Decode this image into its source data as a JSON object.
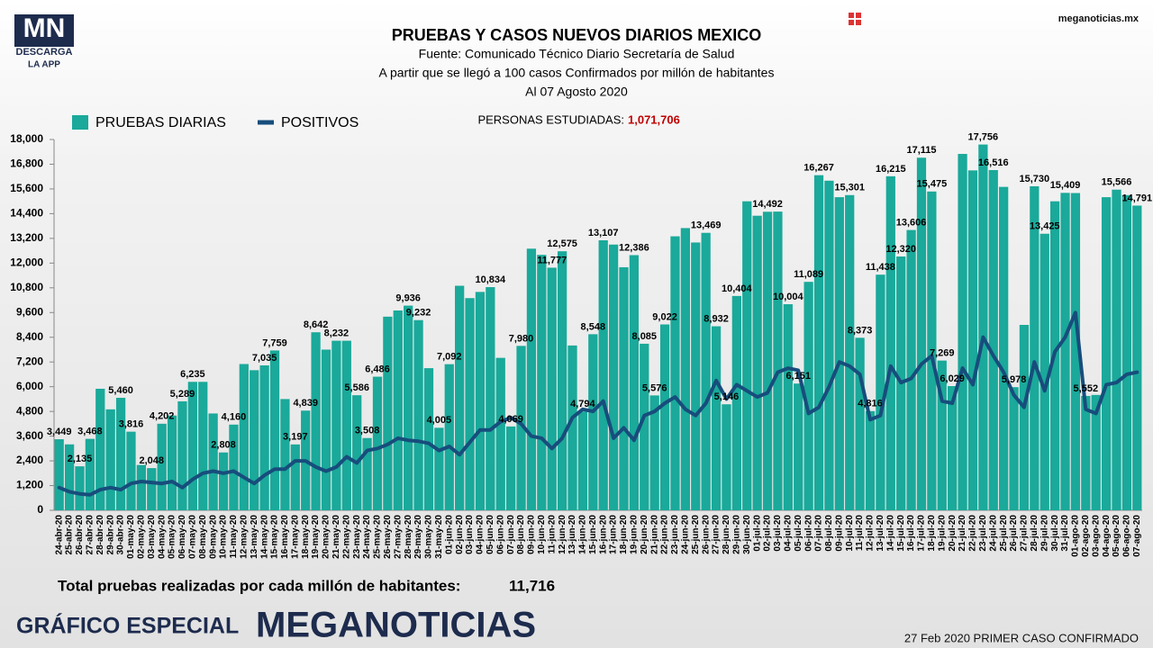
{
  "header": {
    "logo": "MN",
    "logo_line1": "DESCARGA",
    "logo_line2": "LA APP",
    "site": "meganoticias.mx"
  },
  "chart_data": {
    "type": "bar",
    "title": "PRUEBAS Y CASOS NUEVOS DIARIOS MEXICO",
    "source": "Fuente: Comunicado Técnico Diario Secretaría de Salud",
    "subtitle": "A partir que se llegó a 100 casos Confirmados por millón de habitantes",
    "date": "Al 07 Agosto 2020",
    "annotation_label": "PERSONAS ESTUDIADAS:",
    "annotation_value": "1,071,706",
    "categories": [
      "24-abr-20",
      "25-abr-20",
      "26-abr-20",
      "27-abr-20",
      "28-abr-20",
      "29-abr-20",
      "30-abr-20",
      "01-may-20",
      "02-may-20",
      "03-may-20",
      "04-may-20",
      "05-may-20",
      "06-may-20",
      "07-may-20",
      "08-may-20",
      "09-may-20",
      "10-may-20",
      "11-may-20",
      "12-may-20",
      "13-may-20",
      "14-may-20",
      "15-may-20",
      "16-may-20",
      "17-may-20",
      "18-may-20",
      "19-may-20",
      "20-may-20",
      "21-may-20",
      "22-may-20",
      "23-may-20",
      "24-may-20",
      "25-may-20",
      "26-may-20",
      "27-may-20",
      "28-may-20",
      "29-may-20",
      "30-may-20",
      "31-may-20",
      "01-jun-20",
      "02-jun-20",
      "03-jun-20",
      "04-jun-20",
      "05-jun-20",
      "06-jun-20",
      "07-jun-20",
      "08-jun-20",
      "09-jun-20",
      "10-jun-20",
      "11-jun-20",
      "12-jun-20",
      "13-jun-20",
      "14-jun-20",
      "15-jun-20",
      "16-jun-20",
      "17-jun-20",
      "18-jun-20",
      "19-jun-20",
      "20-jun-20",
      "21-jun-20",
      "22-jun-20",
      "23-jun-20",
      "24-jun-20",
      "25-jun-20",
      "26-jun-20",
      "27-jun-20",
      "28-jun-20",
      "29-jun-20",
      "30-jun-20",
      "01-jul-20",
      "02-jul-20",
      "03-jul-20",
      "04-jul-20",
      "05-jul-20",
      "06-jul-20",
      "07-jul-20",
      "08-jul-20",
      "09-jul-20",
      "10-jul-20",
      "11-jul-20",
      "12-jul-20",
      "13-jul-20",
      "14-jul-20",
      "15-jul-20",
      "16-jul-20",
      "17-jul-20",
      "18-jul-20",
      "19-jul-20",
      "20-jul-20",
      "21-jul-20",
      "22-jul-20",
      "23-jul-20",
      "24-jul-20",
      "25-jul-20",
      "26-jul-20",
      "27-jul-20",
      "28-jul-20",
      "29-jul-20",
      "30-jul-20",
      "31-jul-20",
      "01-ago-20",
      "02-ago-20",
      "03-ago-20",
      "04-ago-20",
      "05-ago-20",
      "06-ago-20",
      "07-ago-20"
    ],
    "series": [
      {
        "name": "PRUEBAS DIARIAS",
        "type": "bar",
        "color": "#1aa99a",
        "values": [
          3449,
          3200,
          2135,
          3468,
          5900,
          4900,
          5460,
          3816,
          2200,
          2048,
          4202,
          4600,
          5289,
          6235,
          6235,
          4700,
          2808,
          4160,
          7100,
          6800,
          7035,
          7759,
          5400,
          3197,
          4839,
          8642,
          7800,
          8232,
          8232,
          5586,
          3508,
          6486,
          9400,
          9700,
          9936,
          9232,
          6900,
          4005,
          7092,
          10900,
          10300,
          10600,
          10834,
          7400,
          4069,
          7980,
          12700,
          12400,
          11777,
          12575,
          8000,
          4794,
          8548,
          13107,
          12900,
          11800,
          12386,
          8085,
          5576,
          9022,
          13300,
          13700,
          13000,
          13469,
          8932,
          5146,
          10404,
          15000,
          14300,
          14492,
          14500,
          10004,
          6151,
          11089,
          16267,
          16000,
          15200,
          15301,
          8373,
          4816,
          11438,
          16215,
          12320,
          13606,
          17115,
          15475,
          7269,
          6029,
          17300,
          16500,
          17756,
          16516,
          15700,
          5978,
          9000,
          15730,
          13425,
          15000,
          15409,
          15400,
          5552,
          5600,
          15200,
          15566,
          15300,
          14791
        ],
        "value_labels": [
          "3,449",
          null,
          "2,135",
          "3,468",
          null,
          null,
          "5,460",
          "3,816",
          null,
          "2,048",
          "4,202",
          null,
          "5,289",
          "6,235",
          null,
          null,
          "2,808",
          "4,160",
          null,
          null,
          "7,035",
          "7,759",
          null,
          "3,197",
          "4,839",
          "8,642",
          null,
          "8,232",
          null,
          "5,586",
          "3,508",
          "6,486",
          null,
          null,
          "9,936",
          "9,232",
          null,
          "4,005",
          "7,092",
          null,
          null,
          null,
          "10,834",
          null,
          "4,069",
          "7,980",
          null,
          null,
          "11,777",
          "12,575",
          null,
          "4,794",
          "8,548",
          "13,107",
          null,
          null,
          "12,386",
          "8,085",
          "5,576",
          "9,022",
          null,
          null,
          null,
          "13,469",
          "8,932",
          "5,146",
          "10,404",
          null,
          null,
          "14,492",
          null,
          "10,004",
          "6,151",
          "11,089",
          "16,267",
          null,
          null,
          "15,301",
          "8,373",
          "4,816",
          "11,438",
          "16,215",
          "12,320",
          "13,606",
          "17,115",
          "15,475",
          "7,269",
          "6,029",
          null,
          null,
          "17,756",
          "16,516",
          null,
          "5,978",
          null,
          "15,730",
          "13,425",
          null,
          "15,409",
          null,
          "5,552",
          null,
          null,
          "15,566",
          null,
          "14,791"
        ]
      },
      {
        "name": "POSITIVOS",
        "type": "line",
        "color": "#174d7c",
        "values": [
          1100,
          900,
          800,
          750,
          1000,
          1100,
          1000,
          1300,
          1400,
          1350,
          1300,
          1400,
          1100,
          1500,
          1800,
          1900,
          1800,
          1900,
          1600,
          1300,
          1700,
          2000,
          2000,
          2400,
          2400,
          2100,
          1900,
          2100,
          2600,
          2300,
          2900,
          3000,
          3200,
          3500,
          3400,
          3350,
          3250,
          2900,
          3100,
          2700,
          3300,
          3900,
          3900,
          4300,
          4500,
          4200,
          3600,
          3500,
          3000,
          3500,
          4500,
          4900,
          4800,
          5300,
          3500,
          4000,
          3400,
          4600,
          4800,
          5200,
          5500,
          4900,
          4600,
          5200,
          6300,
          5400,
          6100,
          5800,
          5500,
          5700,
          6700,
          6900,
          6800,
          4700,
          5000,
          6000,
          7200,
          7000,
          6600,
          4400,
          4600,
          7000,
          6200,
          6400,
          7100,
          7500,
          5300,
          5200,
          6900,
          6100,
          8400,
          7500,
          6700,
          5600,
          5000,
          7200,
          5800,
          7700,
          8400,
          9600,
          4900,
          4700,
          6100,
          6200,
          6600,
          6700
        ]
      }
    ],
    "ylim": [
      0,
      18000
    ],
    "yticks": [
      0,
      {
        "value": 1200,
        "label": "1,200"
      },
      {
        "value": 2400,
        "label": "2,400"
      },
      {
        "value": 3600,
        "label": "3,600"
      },
      {
        "value": 4800,
        "label": "4,800"
      },
      {
        "value": 6000,
        "label": "6,000"
      },
      {
        "value": 7200,
        "label": "7,200"
      },
      {
        "value": 8400,
        "label": "8,400"
      },
      {
        "value": 9600,
        "label": "9,600"
      },
      {
        "value": 10800,
        "label": "10,800"
      },
      {
        "value": 12000,
        "label": "12,000"
      },
      {
        "value": 13200,
        "label": "13,200"
      },
      {
        "value": 14400,
        "label": "14,400"
      },
      {
        "value": 15600,
        "label": "15,600"
      },
      {
        "value": 16800,
        "label": "16,800"
      },
      {
        "value": 18000,
        "label": "18,000"
      }
    ],
    "grid": false
  },
  "footer": {
    "total_label": "Total pruebas realizadas por cada millón de habitantes:",
    "total_value": "11,716",
    "special": "GRÁFICO ESPECIAL",
    "brand": "MEGANOTICIAS",
    "note": "27 Feb 2020 PRIMER CASO CONFIRMADO"
  }
}
